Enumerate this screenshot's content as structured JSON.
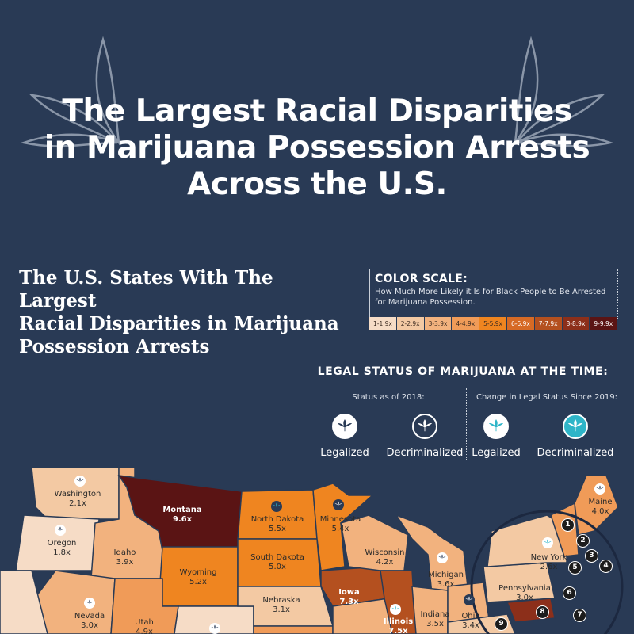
{
  "header": {
    "title_line1": "The Largest Racial Disparities",
    "title_line2": "in Marijuana Possession Arrests",
    "title_line3": "Across the U.S."
  },
  "subtitle": {
    "line1": "The U.S. States With The Largest",
    "line2": "Racial Disparities in Marijuana",
    "line3": "Possession Arrests"
  },
  "color_scale": {
    "title": "COLOR SCALE:",
    "description": "How Much More Likely it Is for Black People to Be Arrested for Marijuana Possession.",
    "bins": [
      {
        "label": "1-1.9x",
        "color": "#f6dcc6"
      },
      {
        "label": "2-2.9x",
        "color": "#f3c9a3"
      },
      {
        "label": "3-3.9x",
        "color": "#f2b27e"
      },
      {
        "label": "4-4.9x",
        "color": "#f09b58"
      },
      {
        "label": "5-5.9x",
        "color": "#ef8520"
      },
      {
        "label": "6-6.9x",
        "color": "#d66a25"
      },
      {
        "label": "7-7.9x",
        "color": "#b4501f"
      },
      {
        "label": "8-8.9x",
        "color": "#8c2f1a"
      },
      {
        "label": "9-9.9x",
        "color": "#5a1414"
      }
    ]
  },
  "legal_status": {
    "title": "LEGAL STATUS OF MARIJUANA AT THE TIME:",
    "sub_2018": "Status as of 2018:",
    "sub_since_2019": "Change in Legal Status Since 2019:",
    "items": [
      {
        "label": "Legalized",
        "icon": "leaf-white-icon"
      },
      {
        "label": "Decriminalized",
        "icon": "leaf-dark-icon"
      },
      {
        "label": "Legalized",
        "icon": "leaf-teal-icon"
      },
      {
        "label": "Decriminalized",
        "icon": "leaf-teal-filled-icon"
      }
    ]
  },
  "states": [
    {
      "name": "Washington",
      "value": "2.1x"
    },
    {
      "name": "Oregon",
      "value": "1.8x"
    },
    {
      "name": "Idaho",
      "value": "3.9x"
    },
    {
      "name": "Montana",
      "value": "9.6x"
    },
    {
      "name": "Wyoming",
      "value": "5.2x"
    },
    {
      "name": "Nevada",
      "value": "3.0x"
    },
    {
      "name": "Utah",
      "value": "4.9x"
    },
    {
      "name": "North Dakota",
      "value": "5.5x"
    },
    {
      "name": "South Dakota",
      "value": "5.0x"
    },
    {
      "name": "Nebraska",
      "value": "3.1x"
    },
    {
      "name": "Minnesota",
      "value": "5.4x"
    },
    {
      "name": "Iowa",
      "value": "7.3x"
    },
    {
      "name": "Wisconsin",
      "value": "4.2x"
    },
    {
      "name": "Illinois",
      "value": "7.5x"
    },
    {
      "name": "Michigan",
      "value": "3.6x"
    },
    {
      "name": "Indiana",
      "value": "3.5x"
    },
    {
      "name": "Ohio",
      "value": "3.4x"
    },
    {
      "name": "Pennsylvania",
      "value": "3.0x"
    },
    {
      "name": "New York",
      "value": "2.6x"
    },
    {
      "name": "Maine",
      "value": "4.0x"
    }
  ],
  "markers": [
    "1",
    "2",
    "3",
    "4",
    "5",
    "6",
    "7",
    "8",
    "9"
  ]
}
